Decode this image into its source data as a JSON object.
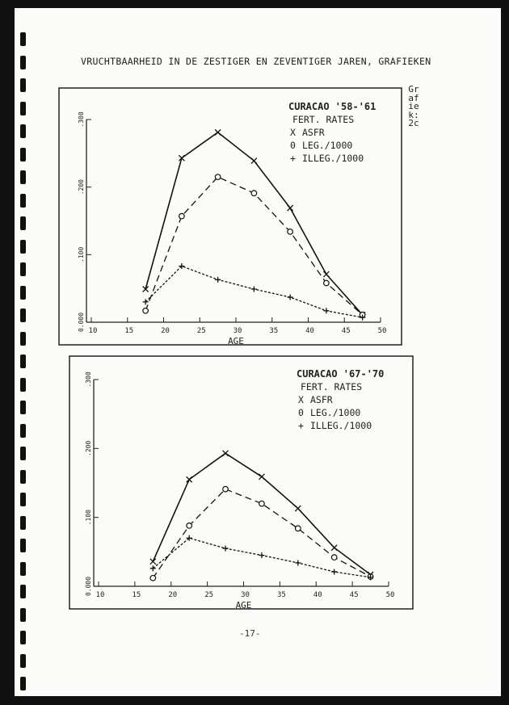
{
  "page": {
    "heading": "VRUCHTBAARHEID IN DE ZESTIGER EN ZEVENTIGER JAREN, GRAFIEKEN",
    "figure_label": "Grafiek: 2c",
    "page_number": "-17-"
  },
  "chart_data": [
    {
      "type": "line",
      "title": "CURACAO '58-'61",
      "subtitle": "FERT. RATES",
      "xlabel": "AGE",
      "ylabel": "",
      "xlim": [
        10,
        50
      ],
      "ylim": [
        0,
        0.3
      ],
      "x_ticks": [
        "10",
        "15",
        "20",
        "25",
        "30",
        "35",
        "40",
        "45",
        "50"
      ],
      "y_ticks": [
        "0.000",
        ".100",
        ".200",
        ".300"
      ],
      "grid": false,
      "legend_placement": "top-right",
      "x": [
        17.5,
        22.5,
        27.5,
        32.5,
        37.5,
        42.5,
        47.5
      ],
      "series": [
        {
          "name": "ASFR",
          "marker": "X",
          "line": "solid",
          "values": [
            0.049,
            0.243,
            0.281,
            0.239,
            0.169,
            0.071,
            0.011
          ]
        },
        {
          "name": "LEG./1000",
          "marker": "0",
          "line": "dashed",
          "values": [
            0.017,
            0.157,
            0.215,
            0.191,
            0.134,
            0.058,
            0.011
          ]
        },
        {
          "name": "ILLEG./1000",
          "marker": "+",
          "line": "dotted",
          "values": [
            0.03,
            0.083,
            0.063,
            0.049,
            0.037,
            0.017,
            0.007
          ]
        }
      ]
    },
    {
      "type": "line",
      "title": "CURACAO '67-'70",
      "subtitle": "FERT. RATES",
      "xlabel": "AGE",
      "ylabel": "",
      "xlim": [
        10,
        50
      ],
      "ylim": [
        0,
        0.3
      ],
      "x_ticks": [
        "10",
        "15",
        "20",
        "25",
        "30",
        "35",
        "40",
        "45",
        "50"
      ],
      "y_ticks": [
        "0.000",
        ".100",
        ".200",
        ".300"
      ],
      "grid": false,
      "legend_placement": "top-right",
      "x": [
        17.5,
        22.5,
        27.5,
        32.5,
        37.5,
        42.5,
        47.5
      ],
      "series": [
        {
          "name": "ASFR",
          "marker": "X",
          "line": "solid",
          "values": [
            0.036,
            0.155,
            0.193,
            0.159,
            0.113,
            0.056,
            0.017
          ]
        },
        {
          "name": "LEG./1000",
          "marker": "0",
          "line": "dashed",
          "values": [
            0.012,
            0.088,
            0.141,
            0.12,
            0.084,
            0.042,
            0.014
          ]
        },
        {
          "name": "ILLEG./1000",
          "marker": "+",
          "line": "dotted",
          "values": [
            0.026,
            0.07,
            0.055,
            0.045,
            0.034,
            0.021,
            0.013
          ]
        }
      ]
    }
  ]
}
